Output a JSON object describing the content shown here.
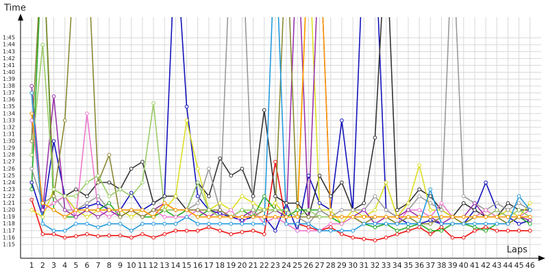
{
  "chart_data": {
    "type": "line",
    "y_label": "Time",
    "x_label": "Laps",
    "categories": [
      1,
      2,
      3,
      4,
      5,
      6,
      7,
      8,
      9,
      10,
      11,
      12,
      13,
      14,
      15,
      16,
      17,
      18,
      19,
      20,
      21,
      22,
      23,
      24,
      25,
      26,
      27,
      28,
      29,
      30,
      31,
      32,
      33,
      34,
      35,
      36,
      37,
      38,
      39,
      40,
      41,
      42,
      43,
      44,
      45,
      46
    ],
    "xlim": [
      0,
      47
    ],
    "ylim": [
      73,
      108
    ],
    "yticks": [
      {
        "value": 75,
        "label": "1:15"
      },
      {
        "value": 76,
        "label": "1:16"
      },
      {
        "value": 77,
        "label": "1:17"
      },
      {
        "value": 78,
        "label": "1:18"
      },
      {
        "value": 79,
        "label": "1:19"
      },
      {
        "value": 80,
        "label": "1:20"
      },
      {
        "value": 81,
        "label": "1:21"
      },
      {
        "value": 82,
        "label": "1:22"
      },
      {
        "value": 83,
        "label": "1:23"
      },
      {
        "value": 84,
        "label": "1:24"
      },
      {
        "value": 85,
        "label": "1:25"
      },
      {
        "value": 86,
        "label": "1:26"
      },
      {
        "value": 87,
        "label": "1:27"
      },
      {
        "value": 88,
        "label": "1:28"
      },
      {
        "value": 89,
        "label": "1:29"
      },
      {
        "value": 90,
        "label": "1:30"
      },
      {
        "value": 91,
        "label": "1:31"
      },
      {
        "value": 92,
        "label": "1:32"
      },
      {
        "value": 93,
        "label": "1:33"
      },
      {
        "value": 94,
        "label": "1:34"
      },
      {
        "value": 95,
        "label": "1:35"
      },
      {
        "value": 96,
        "label": "1:36"
      },
      {
        "value": 97,
        "label": "1:37"
      },
      {
        "value": 98,
        "label": "1:38"
      },
      {
        "value": 99,
        "label": "1:39"
      },
      {
        "value": 100,
        "label": "1:40"
      },
      {
        "value": 101,
        "label": "1:41"
      },
      {
        "value": 102,
        "label": "1:42"
      },
      {
        "value": 103,
        "label": "1:43"
      },
      {
        "value": 104,
        "label": "1:44"
      },
      {
        "value": 105,
        "label": "1:45"
      }
    ],
    "grid": true,
    "series": [
      {
        "color": "#ee1111",
        "values": [
          81.5,
          76.5,
          76.5,
          76,
          76.2,
          76.5,
          76.2,
          76.3,
          76.3,
          76,
          76.5,
          76,
          76.5,
          77,
          77,
          77,
          77.5,
          77,
          76.5,
          76.8,
          77,
          76.5,
          87,
          78,
          78,
          77.5,
          77,
          77.5,
          76.5,
          76,
          75.8,
          75.6,
          76,
          76.5,
          77,
          77.5,
          76.5,
          77.5,
          76,
          76,
          77,
          77.5,
          77,
          77,
          77,
          77
        ]
      },
      {
        "color": "#1111bb",
        "values": [
          84,
          79,
          90,
          82,
          80,
          80.5,
          81,
          80,
          80,
          82.5,
          80,
          81,
          82,
          120,
          95,
          82,
          80,
          79.5,
          79,
          78.5,
          79,
          79,
          77,
          81,
          77,
          85,
          81,
          80,
          93,
          80,
          120,
          120,
          80,
          79,
          78,
          78,
          78.5,
          78,
          78,
          78,
          80,
          84,
          80,
          79,
          78,
          78.5
        ]
      },
      {
        "color": "#333333",
        "values": [
          null,
          80,
          81,
          82,
          83,
          82,
          84,
          84,
          83,
          86,
          87,
          81,
          82,
          82,
          80,
          84,
          82,
          87.5,
          85,
          86,
          82,
          94.5,
          82,
          81,
          81,
          79,
          85,
          82,
          84,
          80,
          81,
          90.5,
          120,
          80,
          81,
          83,
          82,
          80,
          79,
          81,
          80,
          79,
          79,
          81,
          80,
          80
        ]
      },
      {
        "color": "#dddd22",
        "values": [
          80,
          79,
          83,
          82,
          80,
          79,
          80,
          80,
          80,
          79,
          80,
          79,
          80,
          82,
          93,
          86,
          80,
          81,
          80,
          82,
          81,
          80,
          81,
          79,
          80,
          120,
          80,
          80,
          78,
          80,
          79,
          80,
          84,
          79,
          81,
          86.5,
          80,
          80,
          79,
          78,
          79,
          80,
          79,
          80,
          79,
          81
        ]
      },
      {
        "color": "#22aa22",
        "values": [
          83,
          120,
          80,
          79,
          79,
          80,
          80,
          81,
          79,
          80,
          79,
          79,
          80,
          79,
          80,
          79,
          80,
          79,
          79,
          80,
          79,
          82,
          80,
          79,
          80,
          80,
          80,
          79,
          78,
          79,
          78,
          77.5,
          78,
          77,
          77.5,
          78,
          77,
          77,
          78,
          78,
          77.5,
          77,
          78,
          78,
          79,
          78
        ]
      },
      {
        "color": "#999999",
        "values": [
          86,
          81,
          82,
          80,
          80,
          81,
          82,
          80,
          79,
          80,
          79,
          80,
          80,
          80,
          80,
          81,
          86,
          80,
          120,
          120,
          79,
          79,
          80,
          80,
          79,
          78,
          80,
          79,
          80,
          80,
          80,
          82,
          80,
          79,
          80,
          82,
          81,
          80,
          120,
          82,
          81,
          80,
          81,
          80,
          81,
          80
        ]
      },
      {
        "color": "#ee77cc",
        "values": [
          93,
          80,
          81,
          82,
          79,
          94,
          80,
          79,
          80,
          80,
          79,
          80,
          79,
          79,
          79,
          80,
          79,
          79,
          80,
          78,
          80,
          78,
          79,
          78,
          77,
          77,
          77,
          78,
          78,
          79,
          78,
          79,
          79,
          78,
          80,
          80,
          79,
          81,
          79,
          79,
          79,
          80,
          79,
          78,
          79,
          80
        ]
      },
      {
        "color": "#9933aa",
        "values": [
          98,
          80,
          96.5,
          80,
          79,
          80,
          79,
          80,
          79,
          80,
          79,
          80,
          81,
          80,
          80,
          80,
          79,
          80,
          79,
          79,
          80,
          80,
          80,
          79,
          120,
          79,
          120,
          79,
          79,
          79,
          80,
          78,
          79,
          79,
          80,
          79,
          79,
          78,
          79,
          79,
          81,
          79,
          80,
          79,
          79,
          78.5
        ]
      },
      {
        "color": "#888833",
        "values": [
          90,
          120,
          82,
          93,
          120,
          120,
          84,
          88,
          79,
          80,
          79,
          80,
          80,
          80,
          80,
          80,
          80,
          80,
          79,
          79,
          79,
          80,
          80,
          120,
          79,
          79,
          79,
          79,
          79,
          79,
          78,
          79,
          79,
          78,
          79,
          78,
          78,
          79,
          79,
          78,
          79,
          79,
          79,
          78,
          79,
          79
        ]
      },
      {
        "color": "#99cc66",
        "values": [
          88,
          104,
          83,
          82,
          82,
          84,
          85,
          82,
          83,
          82,
          84,
          95.5,
          80,
          80,
          80,
          84,
          80,
          79,
          79,
          80,
          80,
          80,
          80,
          80,
          79,
          80,
          79,
          79,
          79,
          79,
          79,
          79,
          79,
          79,
          79,
          79,
          79,
          79,
          79,
          79,
          79,
          79,
          80,
          79,
          80,
          79
        ]
      },
      {
        "color": "#ff9900",
        "values": [
          94,
          81,
          80,
          79,
          80,
          80,
          80,
          80,
          80,
          80,
          80,
          79,
          81,
          80,
          80,
          79,
          79,
          79,
          79,
          79,
          79,
          79,
          79,
          79,
          79,
          120,
          120,
          79,
          79,
          79,
          79,
          79,
          79,
          79,
          79,
          79,
          79,
          79,
          79,
          79,
          79,
          79,
          79,
          79,
          79,
          79
        ]
      },
      {
        "color": "#2299dd",
        "values": [
          97,
          78,
          77,
          77,
          78,
          78,
          77.5,
          78,
          78,
          77,
          78,
          78,
          78,
          78,
          79,
          78,
          78,
          78,
          78,
          78,
          78,
          78,
          120,
          78,
          78,
          78,
          77,
          77,
          77,
          77,
          78,
          78,
          78,
          78,
          78,
          78,
          83,
          78,
          78,
          78,
          78,
          78,
          78,
          78,
          82,
          80
        ]
      }
    ]
  }
}
